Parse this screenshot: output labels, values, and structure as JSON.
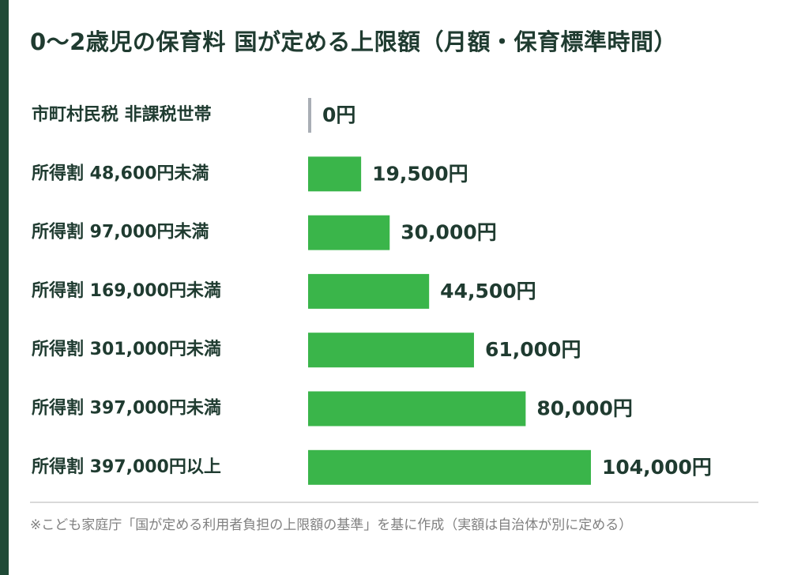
{
  "title": "0〜2歳児の保育料 国が定める上限額（月額・保育標準時間）",
  "footnote": "※こども家庭庁「国が定める利用者負担の上限額の基準」を基に作成（実額は自治体が別に定める）",
  "colors": {
    "bar": "#3ab54a",
    "zero_marker": "#a9aeb5",
    "text": "#1f3b30",
    "accent_bar": "#1f4a36"
  },
  "chart_data": {
    "type": "bar",
    "orientation": "horizontal",
    "categories": [
      "市町村民税 非課税世帯",
      "所得割 48,600円未満",
      "所得割 97,000円未満",
      "所得割 169,000円未満",
      "所得割 301,000円未満",
      "所得割 397,000円未満",
      "所得割 397,000円以上"
    ],
    "values": [
      0,
      19500,
      30000,
      44500,
      61000,
      80000,
      104000
    ],
    "value_labels": [
      "0円",
      "19,500円",
      "30,000円",
      "44,500円",
      "61,000円",
      "80,000円",
      "104,000円"
    ],
    "xlim": [
      0,
      104000
    ],
    "grid": false,
    "legend": "none"
  }
}
